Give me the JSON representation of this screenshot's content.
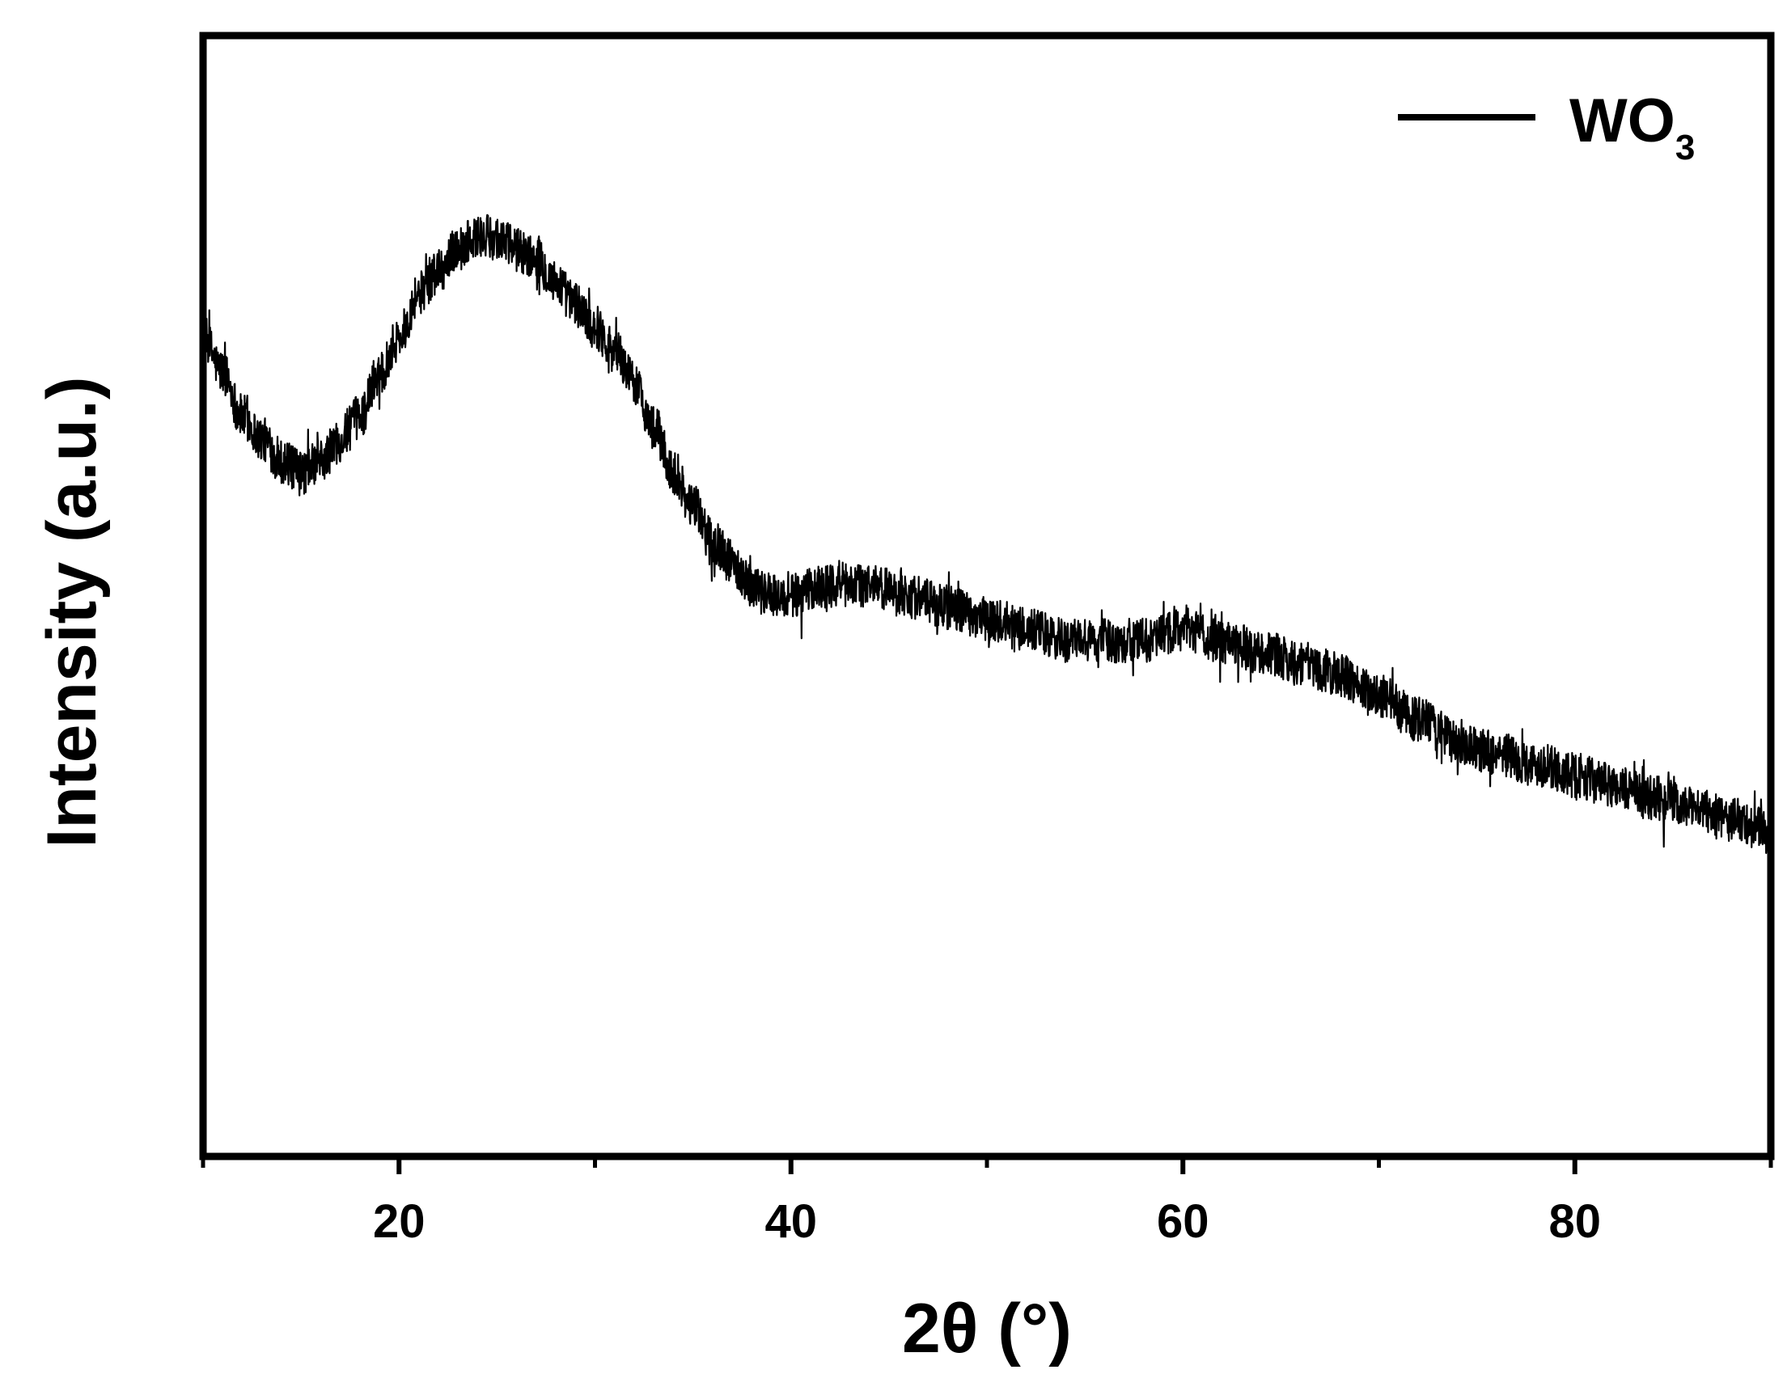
{
  "chart_data": {
    "type": "line",
    "title": "",
    "xlabel": "2θ (°)",
    "ylabel": "Intensity (a.u.)",
    "xlim": [
      10,
      90
    ],
    "ylim": [
      0,
      1
    ],
    "xticks": [
      20,
      40,
      60,
      80
    ],
    "xticks_minor": [
      10,
      30,
      50,
      70,
      90
    ],
    "yticks": [],
    "grid": false,
    "legend": {
      "placement": "top-right",
      "entries": [
        {
          "name": "WO",
          "subscript": "3",
          "color": "#000000"
        }
      ]
    },
    "series": [
      {
        "name": "WO3",
        "color": "#000000",
        "noise_amplitude": 0.02,
        "x": [
          10,
          11,
          12,
          13,
          14,
          15,
          16,
          17,
          18,
          19,
          20,
          21,
          22,
          23,
          24,
          25,
          26,
          27,
          28,
          29,
          30,
          31,
          32,
          33,
          34,
          35,
          36,
          37,
          38,
          39,
          40,
          42,
          44,
          46,
          48,
          50,
          52,
          54,
          56,
          58,
          60,
          62,
          64,
          66,
          68,
          70,
          72,
          74,
          76,
          78,
          80,
          82,
          84,
          86,
          88,
          90
        ],
        "y": [
          0.73,
          0.7,
          0.66,
          0.64,
          0.62,
          0.61,
          0.62,
          0.64,
          0.66,
          0.7,
          0.73,
          0.77,
          0.79,
          0.81,
          0.82,
          0.82,
          0.81,
          0.8,
          0.78,
          0.76,
          0.74,
          0.72,
          0.69,
          0.65,
          0.61,
          0.58,
          0.55,
          0.53,
          0.51,
          0.5,
          0.5,
          0.51,
          0.51,
          0.5,
          0.49,
          0.48,
          0.47,
          0.46,
          0.46,
          0.46,
          0.47,
          0.46,
          0.45,
          0.44,
          0.43,
          0.41,
          0.39,
          0.37,
          0.36,
          0.35,
          0.34,
          0.33,
          0.32,
          0.31,
          0.3,
          0.29
        ]
      }
    ]
  }
}
